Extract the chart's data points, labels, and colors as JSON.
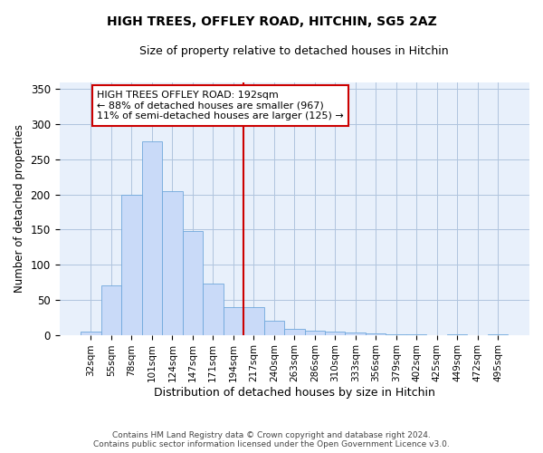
{
  "title": "HIGH TREES, OFFLEY ROAD, HITCHIN, SG5 2AZ",
  "subtitle": "Size of property relative to detached houses in Hitchin",
  "xlabel": "Distribution of detached houses by size in Hitchin",
  "ylabel": "Number of detached properties",
  "bar_labels": [
    "32sqm",
    "55sqm",
    "78sqm",
    "101sqm",
    "124sqm",
    "147sqm",
    "171sqm",
    "194sqm",
    "217sqm",
    "240sqm",
    "263sqm",
    "286sqm",
    "310sqm",
    "333sqm",
    "356sqm",
    "379sqm",
    "402sqm",
    "425sqm",
    "449sqm",
    "472sqm",
    "495sqm"
  ],
  "bar_values": [
    5,
    70,
    200,
    275,
    205,
    148,
    73,
    40,
    40,
    20,
    8,
    6,
    4,
    3,
    2,
    1,
    1,
    0,
    1,
    0,
    1
  ],
  "bar_color": "#c9daf8",
  "bar_edge_color": "#6fa8dc",
  "vline_color": "#cc0000",
  "annotation_text": "HIGH TREES OFFLEY ROAD: 192sqm\n← 88% of detached houses are smaller (967)\n11% of semi-detached houses are larger (125) →",
  "annotation_box_color": "#ffffff",
  "annotation_box_edge": "#cc0000",
  "ylim": [
    0,
    360
  ],
  "yticks": [
    0,
    50,
    100,
    150,
    200,
    250,
    300,
    350
  ],
  "grid_color": "#b0c4de",
  "bg_color": "#e8f0fb",
  "footer_line1": "Contains HM Land Registry data © Crown copyright and database right 2024.",
  "footer_line2": "Contains public sector information licensed under the Open Government Licence v3.0."
}
